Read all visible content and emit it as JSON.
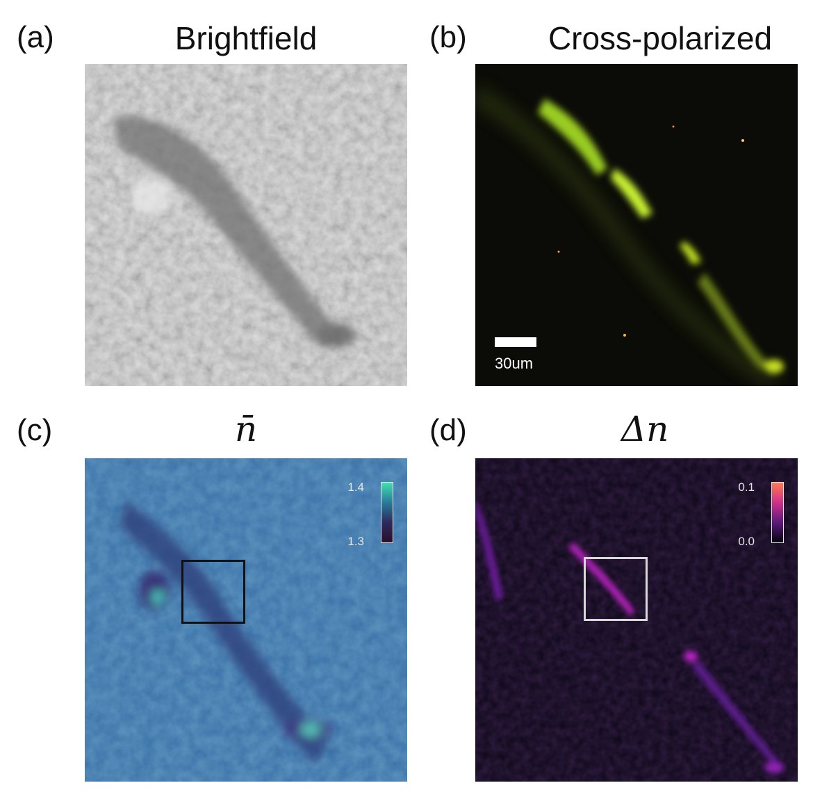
{
  "panels": {
    "a": {
      "label": "(a)",
      "title": "Brightfield"
    },
    "b": {
      "label": "(b)",
      "title": "Cross-polarized",
      "scale_bar": "30um"
    },
    "c": {
      "label": "(c)",
      "title": "n̄",
      "colorbar": {
        "max": "1.4",
        "min": "1.3",
        "colors": [
          "#3fe0b0",
          "#2a7a9a",
          "#2b2b5e",
          "#2a0f2a"
        ]
      }
    },
    "d": {
      "label": "(d)",
      "title": "Δn",
      "colorbar": {
        "max": "0.1",
        "min": "0.0",
        "colors": [
          "#ff7a50",
          "#d0308a",
          "#5a1a7a",
          "#06040f"
        ]
      }
    }
  }
}
